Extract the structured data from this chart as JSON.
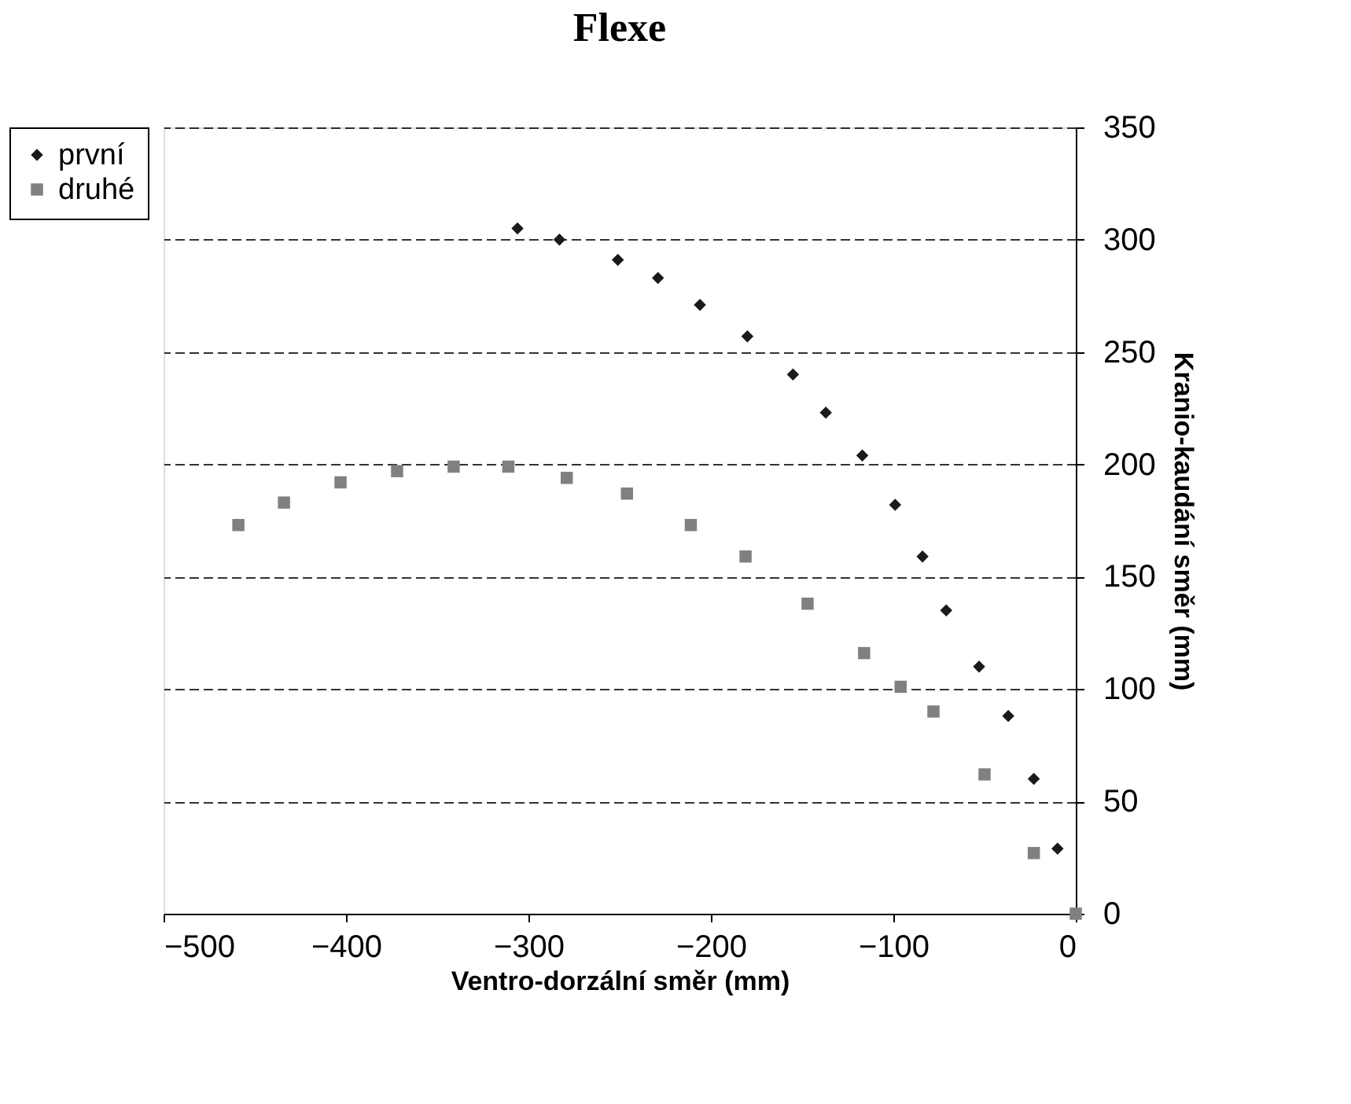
{
  "chart_data": {
    "type": "scatter",
    "title": "Flexe",
    "xlabel": "Ventro-dorzální směr (mm)",
    "ylabel": "Kranio-kaudání směr (mm)",
    "xlim": [
      -500,
      0
    ],
    "xticks": [
      -500,
      -400,
      -300,
      -200,
      -100,
      0
    ],
    "ylim": [
      0,
      350
    ],
    "yticks": [
      0,
      50,
      100,
      150,
      200,
      250,
      300,
      350
    ],
    "grid": "y",
    "legend": "left",
    "series": [
      {
        "name": "první",
        "color": "#1a1a1a",
        "marker": "diamond",
        "x": [
          -306,
          -283,
          -251,
          -229,
          -206,
          -180,
          -155,
          -137,
          -117,
          -99,
          -84,
          -71,
          -53,
          -37,
          -23,
          -10
        ],
        "values": [
          305,
          300,
          291,
          283,
          271,
          257,
          240,
          223,
          204,
          182,
          159,
          135,
          110,
          88,
          60,
          29
        ]
      },
      {
        "name": "druhé",
        "color": "#808080",
        "marker": "square",
        "x": [
          -459,
          -434,
          -403,
          -372,
          -341,
          -311,
          -279,
          -246,
          -211,
          -181,
          -147,
          -116,
          -96,
          -78,
          -50,
          -23,
          0
        ],
        "values": [
          173,
          183,
          192,
          197,
          199,
          199,
          194,
          187,
          173,
          159,
          138,
          116,
          101,
          90,
          62,
          27,
          0
        ]
      }
    ]
  }
}
